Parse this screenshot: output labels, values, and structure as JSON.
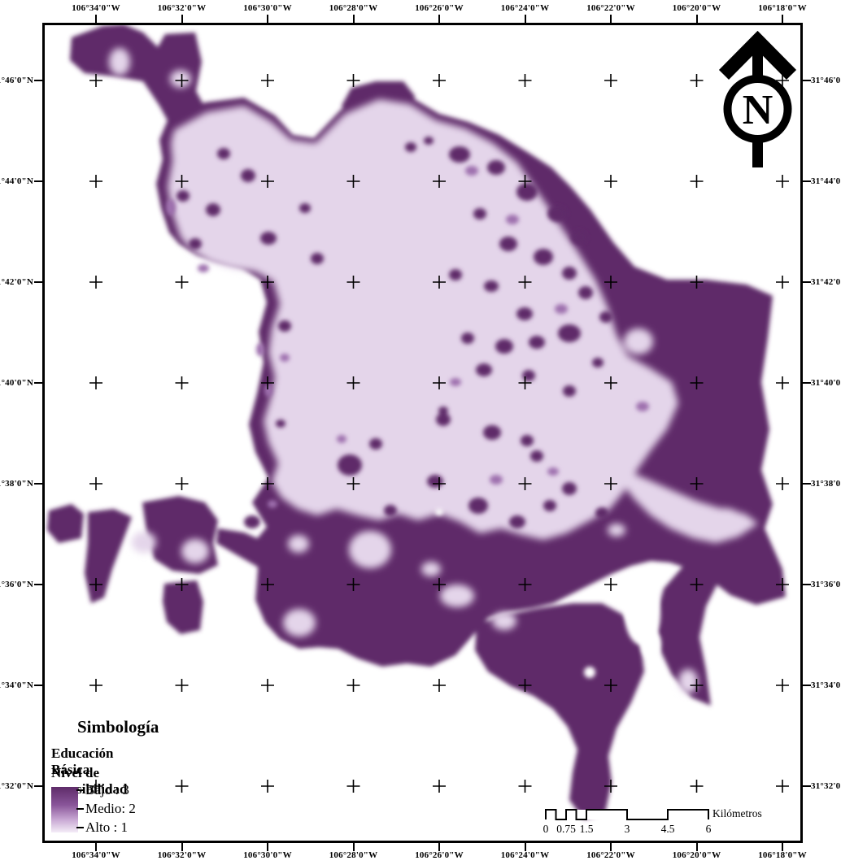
{
  "graticule": {
    "lon_labels": [
      "106°34'0\"W",
      "106°32'0\"W",
      "106°30'0\"W",
      "106°28'0\"W",
      "106°26'0\"W",
      "106°24'0\"W",
      "106°22'0\"W",
      "106°20'0\"W",
      "106°18'0\"W"
    ],
    "lat_labels": [
      "31°46'0\"N",
      "31°44'0\"N",
      "31°42'0\"N",
      "31°40'0\"N",
      "31°38'0\"N",
      "31°36'0\"N",
      "31°34'0\"N",
      "31°32'0\"N"
    ]
  },
  "legend": {
    "title": "Simbología",
    "subtitle": "Educación Básica",
    "heading": "Nivel de accesibilidad",
    "items": [
      {
        "label": "Bajo : 3",
        "value": 3
      },
      {
        "label": "Medio: 2",
        "value": 2
      },
      {
        "label": "Alto : 1",
        "value": 1
      }
    ]
  },
  "scalebar": {
    "tick_labels": [
      "0",
      "0.75",
      "1.5",
      "3",
      "4.5",
      "6"
    ],
    "unit": "Kilómetros"
  },
  "north_arrow": {
    "letter": "N"
  },
  "colors": {
    "dark": "#5e2b69",
    "medium": "#9e6fae",
    "light": "#e4d5ea",
    "background": "#ffffff",
    "frame": "#000000"
  }
}
